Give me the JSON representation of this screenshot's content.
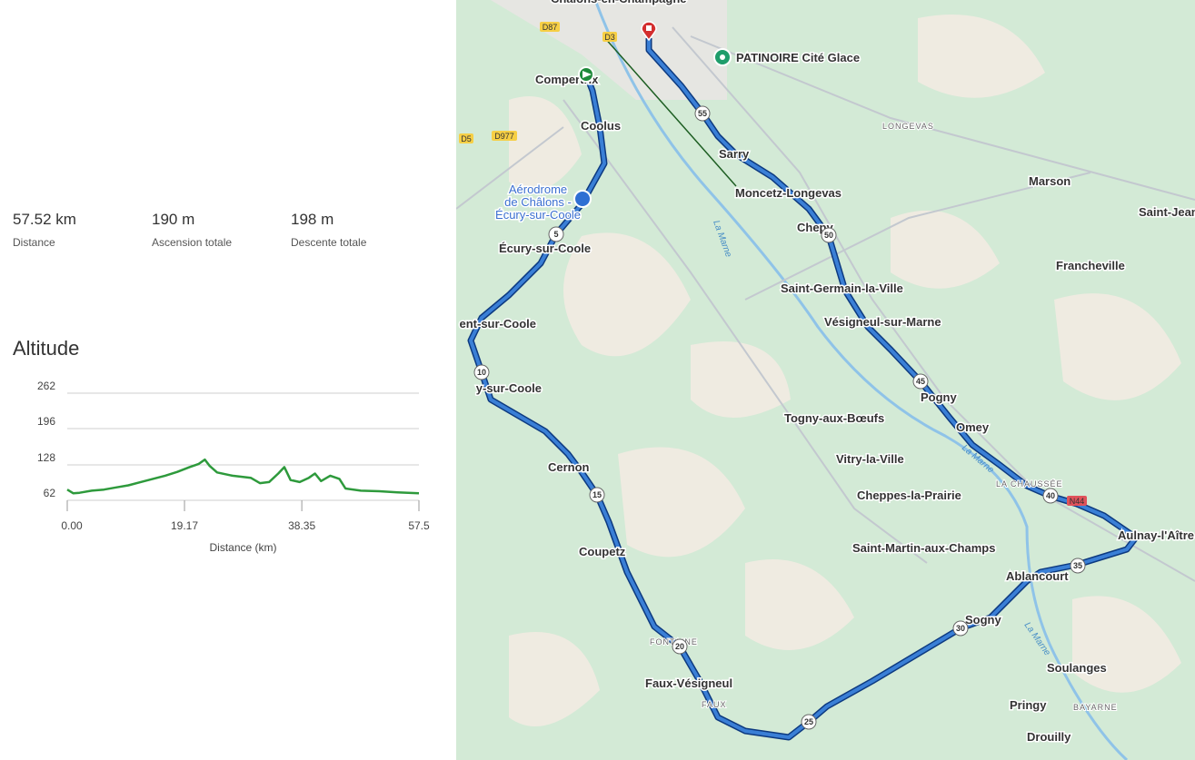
{
  "stats": [
    {
      "value": "57.52 km",
      "label": "Distance"
    },
    {
      "value": "190 m",
      "label": "Ascension totale"
    },
    {
      "value": "198 m",
      "label": "Descente totale"
    }
  ],
  "chart_data": {
    "type": "line",
    "title": "Altitude",
    "xlabel": "Distance (km)",
    "x": [
      0,
      1,
      2,
      4,
      6,
      8,
      10,
      12,
      14,
      16,
      18,
      20,
      21.5,
      22.5,
      23.3,
      24.5,
      27,
      30,
      31.5,
      33,
      34.5,
      35.5,
      36.5,
      38,
      39.5,
      40.5,
      41.5,
      43,
      44.5,
      45.5,
      48,
      51,
      54,
      57.5
    ],
    "series": [
      {
        "color": "#2e9a3c",
        "values": [
          82,
          75,
          76,
          80,
          82,
          86,
          90,
          96,
          102,
          108,
          115,
          124,
          130,
          138,
          126,
          114,
          108,
          104,
          94,
          96,
          112,
          124,
          100,
          96,
          104,
          112,
          98,
          108,
          102,
          84,
          80,
          79,
          77,
          75
        ]
      }
    ],
    "xlim": [
      0,
      57.5
    ],
    "xticks": [
      {
        "value": 0,
        "label": "0.00"
      },
      19.17,
      38.35,
      57.5
    ],
    "ylim": [
      62,
      262
    ],
    "yticks": [
      62,
      128,
      196,
      262
    ],
    "grid": true
  },
  "map": {
    "places": [
      "Châlons-en-Champagne",
      "PATINOIRE Cité Glace",
      "Compertrix",
      "Coolus",
      "Aérodrome",
      "de Châlons -",
      "Écury-sur-Coole",
      "Écury-sur-Coole",
      "ent-sur-Coole",
      "y-sur-Coole",
      "Cernon",
      "Coupetz",
      "FONTAINE",
      "Faux-Vésigneul",
      "FAUX",
      "Sogny",
      "Ablancourt",
      "Aulnay-l'Aître",
      "Soulanges",
      "Pringy",
      "BAYARNE",
      "Drouilly",
      "Saint-Martin-aux-Champs",
      "Cheppes-la-Prairie",
      "Vitry-la-Ville",
      "Togny-aux-Bœufs",
      "Pogny",
      "Omey",
      "LA CHAUSSÉE",
      "Vésigneul-sur-Marne",
      "Saint-Germain-la-Ville",
      "Chepy",
      "Moncetz-Longevas",
      "Sarry",
      "LONGEVAS",
      "Marson",
      "Saint-Jean",
      "Francheville"
    ],
    "rivers": [
      "La Marne",
      "La Marne",
      "La Marne"
    ],
    "roads": [
      "D87",
      "D3",
      "D5",
      "D977",
      "N44"
    ],
    "km_markers": [
      5,
      10,
      15,
      20,
      25,
      30,
      35,
      40,
      45,
      50,
      55
    ]
  }
}
